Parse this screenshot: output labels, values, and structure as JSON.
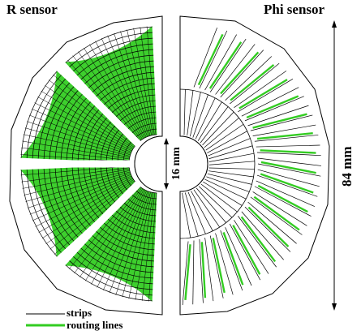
{
  "labels": {
    "r_sensor": "R sensor",
    "phi_sensor": "Phi sensor",
    "inner_dim": "16 mm",
    "outer_dim": "84 mm"
  },
  "legend": {
    "strips": "strips",
    "routing": "routing lines"
  },
  "colors": {
    "strip": "#000000",
    "routing": "#33cc22",
    "background": "#ffffff"
  }
}
